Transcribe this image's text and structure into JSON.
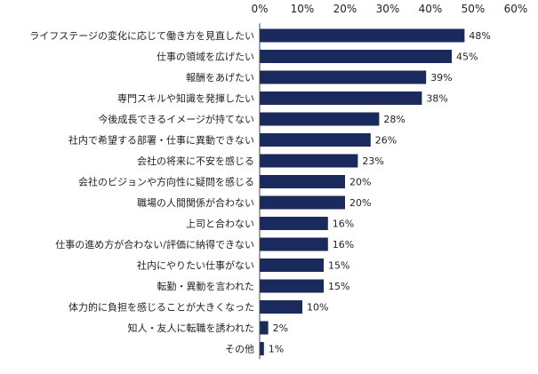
{
  "colors": {
    "bar": "#1b2a5c",
    "axis": "#444444",
    "background": "#ffffff"
  },
  "chart_data": {
    "type": "bar",
    "orientation": "horizontal",
    "categories": [
      "ライフステージの変化に応じて働き方を見直したい",
      "仕事の領域を広げたい",
      "報酬をあげたい",
      "専門スキルや知識を発揮したい",
      "今後成長できるイメージが持てない",
      "社内で希望する部署・仕事に異動できない",
      "会社の将来に不安を感じる",
      "会社のビジョンや方向性に疑問を感じる",
      "職場の人間関係が合わない",
      "上司と合わない",
      "仕事の進め方が合わない/評価に納得できない",
      "社内にやりたい仕事がない",
      "転勤・異動を言われた",
      "体力的に負担を感じることが大きくなった",
      "知人・友人に転職を誘われた",
      "その他"
    ],
    "values": [
      48,
      45,
      39,
      38,
      28,
      26,
      23,
      20,
      20,
      16,
      16,
      15,
      15,
      10,
      2,
      1
    ],
    "value_labels": [
      "48%",
      "45%",
      "39%",
      "38%",
      "28%",
      "26%",
      "23%",
      "20%",
      "20%",
      "16%",
      "16%",
      "15%",
      "15%",
      "10%",
      "2%",
      "1%"
    ],
    "xlim": [
      0,
      60
    ],
    "xticks": [
      0,
      10,
      20,
      30,
      40,
      50,
      60
    ],
    "xtick_labels": [
      "0%",
      "10%",
      "20%",
      "30%",
      "40%",
      "50%",
      "60%"
    ],
    "x_axis_position": "top",
    "grid": false,
    "legend": "none"
  }
}
